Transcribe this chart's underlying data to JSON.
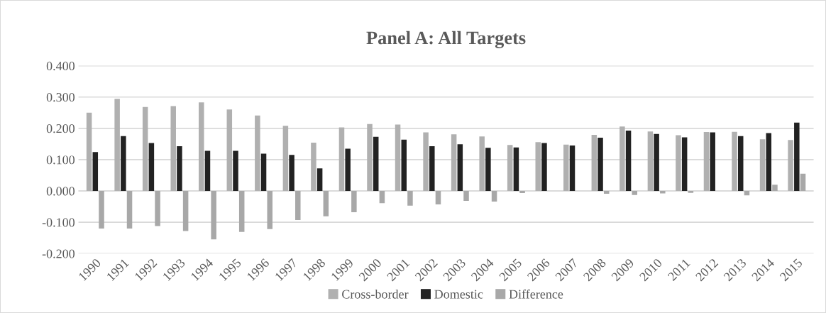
{
  "chart_data": {
    "type": "bar",
    "title": "Panel A: All Targets",
    "categories": [
      "1990",
      "1991",
      "1992",
      "1993",
      "1994",
      "1995",
      "1996",
      "1997",
      "1998",
      "1999",
      "2000",
      "2001",
      "2002",
      "2003",
      "2004",
      "2005",
      "2006",
      "2007",
      "2008",
      "2009",
      "2010",
      "2011",
      "2012",
      "2013",
      "2014",
      "2015"
    ],
    "series": [
      {
        "name": "Cross-border",
        "color": "#b0b0b0",
        "values": [
          0.25,
          0.294,
          0.268,
          0.271,
          0.283,
          0.26,
          0.241,
          0.208,
          0.154,
          0.203,
          0.214,
          0.212,
          0.187,
          0.181,
          0.174,
          0.147,
          0.156,
          0.148,
          0.179,
          0.206,
          0.19,
          0.178,
          0.188,
          0.189,
          0.165,
          0.163
        ]
      },
      {
        "name": "Domestic",
        "color": "#222222",
        "values": [
          0.124,
          0.175,
          0.153,
          0.143,
          0.128,
          0.128,
          0.119,
          0.115,
          0.072,
          0.135,
          0.173,
          0.164,
          0.143,
          0.149,
          0.138,
          0.139,
          0.153,
          0.145,
          0.17,
          0.193,
          0.182,
          0.171,
          0.187,
          0.175,
          0.185,
          0.218
        ]
      },
      {
        "name": "Difference",
        "color": "#a8a8a8",
        "values": [
          -0.12,
          -0.12,
          -0.112,
          -0.128,
          -0.155,
          -0.131,
          -0.122,
          -0.093,
          -0.081,
          -0.068,
          -0.039,
          -0.047,
          -0.043,
          -0.032,
          -0.034,
          -0.007,
          null,
          null,
          -0.009,
          -0.013,
          -0.008,
          -0.006,
          0.0,
          -0.014,
          0.02,
          0.055
        ]
      }
    ],
    "ylim": [
      -0.2,
      0.4
    ],
    "yticks": [
      {
        "value": -0.2,
        "label": "-0.200"
      },
      {
        "value": -0.1,
        "label": "-0.100"
      },
      {
        "value": 0,
        "label": "0.000"
      },
      {
        "value": 0.1,
        "label": "0.100"
      },
      {
        "value": 0.2,
        "label": "0.200"
      },
      {
        "value": 0.3,
        "label": "0.300"
      },
      {
        "value": 0.4,
        "label": "0.400"
      }
    ],
    "grid": "y",
    "legend": "bottom"
  }
}
